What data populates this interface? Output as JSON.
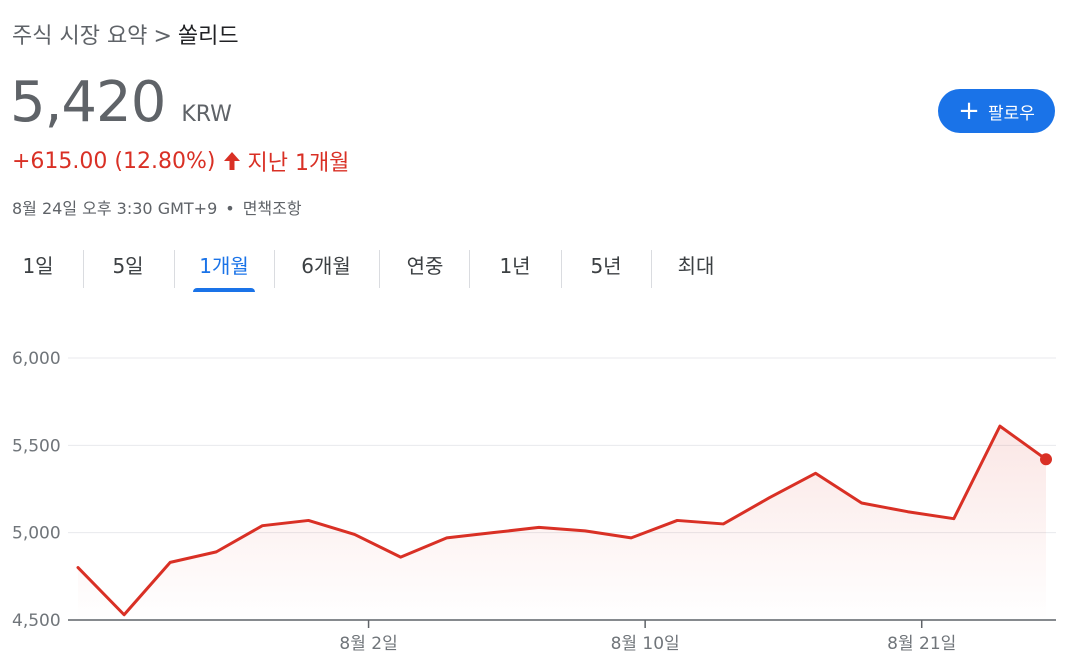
{
  "breadcrumb": {
    "parent": "주식 시장 요약",
    "separator": ">",
    "current": "쏠리드"
  },
  "quote": {
    "price": "5,420",
    "currency": "KRW",
    "change": "+615.00 (12.80%)",
    "period": "지난 1개월",
    "timestamp": "8월 24일 오후 3:30 GMT+9",
    "bullet": "•",
    "disclaimer": "면책조항"
  },
  "follow_button": {
    "label": "팔로우",
    "icon": "plus-icon"
  },
  "tabs": [
    {
      "label": "1일"
    },
    {
      "label": "5일"
    },
    {
      "label": "1개월",
      "active": true
    },
    {
      "label": "6개월"
    },
    {
      "label": "연중"
    },
    {
      "label": "1년"
    },
    {
      "label": "5년"
    },
    {
      "label": "최대"
    }
  ],
  "colors": {
    "accent": "#1a73e8",
    "negative_line": "#d93025",
    "up_text": "#d93025"
  },
  "chart_data": {
    "type": "area",
    "y_ticks": [
      "6,000",
      "5,500",
      "5,000",
      "4,500"
    ],
    "y_tick_values": [
      6000,
      5500,
      5000,
      4500
    ],
    "ylim": [
      4500,
      6000
    ],
    "x_ticks": [
      {
        "label": "8월 2일",
        "index": 6
      },
      {
        "label": "8월 10일",
        "index": 12
      },
      {
        "label": "8월 21일",
        "index": 18
      }
    ],
    "series": [
      {
        "values": [
          4800,
          4530,
          4830,
          4890,
          5040,
          5070,
          4990,
          4860,
          4970,
          5000,
          5030,
          5010,
          4970,
          5070,
          5050,
          5200,
          5340,
          5170,
          5120,
          5080,
          5610,
          5420
        ]
      }
    ],
    "grid": true
  }
}
